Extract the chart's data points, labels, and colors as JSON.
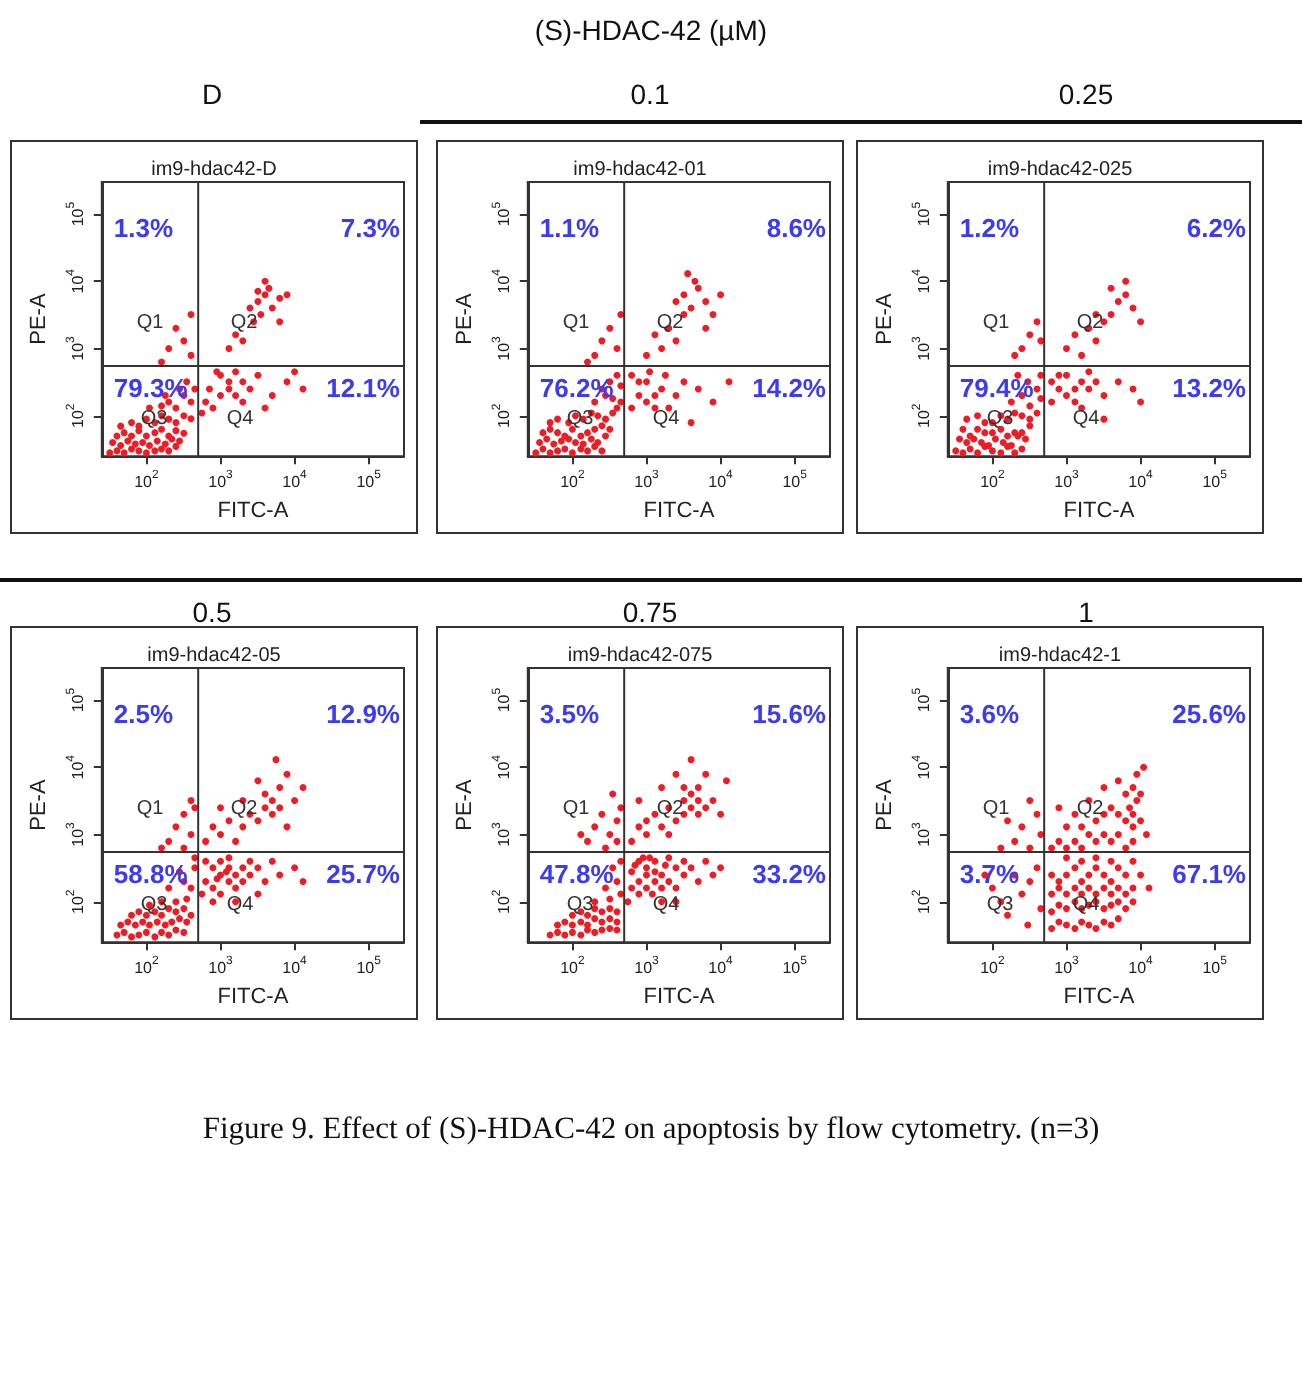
{
  "chart_data": [
    {
      "type": "scatter",
      "title": "D",
      "subtitle": "im9-hdac42-D",
      "xlabel": "FITC-A",
      "ylabel": "PE-A",
      "log": "xy",
      "marker": "circle",
      "xlim": [
        25,
        300000
      ],
      "ylim": [
        25,
        300000
      ],
      "xticks": [
        {
          "value": 100,
          "label": "10$^{2}$"
        },
        {
          "value": 1000,
          "label": "10$^{3}$"
        },
        {
          "value": 10000,
          "label": "10$^{4}$"
        },
        {
          "value": 100000,
          "label": "10$^{5}$"
        }
      ],
      "yticks": [
        {
          "value": 100,
          "label": "10$^{2}$"
        },
        {
          "value": 1000,
          "label": "10$^{3}$"
        },
        {
          "value": 10000,
          "label": "10$^{4}$"
        },
        {
          "value": 100000,
          "label": "10$^{5}$"
        }
      ],
      "ref_lines": [
        {
          "axis": "x",
          "value": 500,
          "color": "#333333"
        },
        {
          "axis": "y",
          "value": 550,
          "color": "#333333"
        }
      ],
      "annotations": [
        "1.3%",
        "7.3%",
        "79.3%",
        "12.1%",
        "Q1",
        "Q2",
        "Q3",
        "Q4",
        "(S)-HDAC-42 (µM)"
      ],
      "series": [
        {
          "color": "#ee1c24",
          "x": [
            32,
            40,
            50,
            63,
            79,
            100,
            130,
            160,
            200,
            250,
            35,
            45,
            56,
            71,
            89,
            110,
            140,
            180,
            220,
            280,
            40,
            50,
            63,
            79,
            100,
            130,
            160,
            200,
            250,
            320,
            45,
            63,
            79,
            100,
            130,
            160,
            200,
            250,
            320,
            400,
            110,
            160,
            200,
            250,
            320,
            400,
            450,
            280,
            180,
            350,
            560,
            630,
            790,
            1000,
            1300,
            1600,
            2000,
            2500,
            1000,
            1300,
            710,
            890,
            2000,
            3200,
            1600,
            5000,
            7900,
            13000,
            4000,
            10000,
            3200,
            4000,
            5000,
            4500,
            3500,
            2500,
            6300,
            4000,
            2800,
            1600,
            1300,
            2000,
            6300,
            7900,
            3200,
            200,
            250,
            320,
            400,
            160,
            400
          ],
          "values": [
            28,
            30,
            28,
            32,
            30,
            28,
            30,
            32,
            30,
            35,
            40,
            36,
            42,
            38,
            40,
            36,
            42,
            38,
            45,
            42,
            50,
            56,
            50,
            60,
            50,
            56,
            63,
            50,
            60,
            55,
            70,
            79,
            70,
            89,
            79,
            100,
            89,
            79,
            100,
            90,
            130,
            140,
            160,
            130,
            200,
            160,
            250,
            250,
            200,
            320,
            110,
            160,
            130,
            200,
            250,
            200,
            320,
            250,
            400,
            320,
            250,
            450,
            160,
            400,
            450,
            200,
            320,
            250,
            130,
            450,
            5000,
            6300,
            4000,
            7900,
            3200,
            4000,
            5600,
            10000,
            2500,
            1600,
            1000,
            1300,
            2500,
            6300,
            7100,
            1000,
            2000,
            1300,
            3200,
            630,
            790
          ]
        }
      ]
    },
    {
      "type": "scatter",
      "title": "0.1",
      "subtitle": "im9-hdac42-01",
      "xlabel": "FITC-A",
      "ylabel": "PE-A",
      "log": "xy",
      "marker": "circle",
      "xlim": [
        25,
        300000
      ],
      "ylim": [
        25,
        300000
      ],
      "xticks": [
        {
          "value": 100,
          "label": "10$^{2}$"
        },
        {
          "value": 1000,
          "label": "10$^{3}$"
        },
        {
          "value": 10000,
          "label": "10$^{4}$"
        },
        {
          "value": 100000,
          "label": "10$^{5}$"
        }
      ],
      "yticks": [
        {
          "value": 100,
          "label": "10$^{2}$"
        },
        {
          "value": 1000,
          "label": "10$^{3}$"
        },
        {
          "value": 10000,
          "label": "10$^{4}$"
        },
        {
          "value": 100000,
          "label": "10$^{5}$"
        }
      ],
      "ref_lines": [
        {
          "axis": "x",
          "value": 500,
          "color": "#333333"
        },
        {
          "axis": "y",
          "value": 550,
          "color": "#333333"
        }
      ],
      "annotations": [
        "1.1%",
        "8.6%",
        "76.2%",
        "14.2%",
        "Q1",
        "Q2",
        "Q3",
        "Q4"
      ],
      "series": [
        {
          "color": "#ee1c24",
          "x": [
            32,
            40,
            50,
            63,
            79,
            100,
            130,
            160,
            200,
            250,
            36,
            45,
            56,
            71,
            89,
            110,
            140,
            180,
            220,
            280,
            40,
            50,
            63,
            79,
            100,
            130,
            160,
            200,
            250,
            320,
            50,
            63,
            89,
            110,
            140,
            180,
            220,
            280,
            350,
            400,
            200,
            280,
            350,
            450,
            320,
            400,
            250,
            450,
            630,
            790,
            1000,
            1300,
            1600,
            1000,
            1300,
            790,
            1800,
            2500,
            3200,
            2000,
            630,
            1100,
            5000,
            7900,
            13000,
            4000,
            2500,
            3200,
            4000,
            5000,
            3200,
            2000,
            6300,
            4500,
            2500,
            1300,
            1000,
            1600,
            7900,
            10000,
            3600,
            6300,
            200,
            250,
            320,
            400,
            450,
            160
          ],
          "values": [
            28,
            32,
            28,
            30,
            32,
            28,
            32,
            30,
            35,
            30,
            40,
            45,
            38,
            42,
            45,
            40,
            38,
            45,
            40,
            50,
            56,
            63,
            56,
            50,
            63,
            50,
            56,
            63,
            71,
            63,
            79,
            89,
            79,
            100,
            89,
            110,
            100,
            89,
            110,
            130,
            160,
            200,
            180,
            280,
            320,
            400,
            250,
            160,
            130,
            200,
            160,
            200,
            250,
            320,
            130,
            320,
            400,
            200,
            320,
            130,
            400,
            450,
            250,
            160,
            320,
            79,
            5000,
            6300,
            4000,
            7900,
            3200,
            2000,
            5000,
            10000,
            1300,
            1600,
            790,
            1000,
            3200,
            6300,
            13000,
            2000,
            790,
            1300,
            2000,
            1000,
            3200,
            630
          ]
        }
      ]
    },
    {
      "type": "scatter",
      "title": "0.25",
      "subtitle": "im9-hdac42-025",
      "xlabel": "FITC-A",
      "ylabel": "PE-A",
      "log": "xy",
      "marker": "circle",
      "xlim": [
        25,
        300000
      ],
      "ylim": [
        25,
        300000
      ],
      "xticks": [
        {
          "value": 100,
          "label": "10$^{2}$"
        },
        {
          "value": 1000,
          "label": "10$^{3}$"
        },
        {
          "value": 10000,
          "label": "10$^{4}$"
        },
        {
          "value": 100000,
          "label": "10$^{5}$"
        }
      ],
      "yticks": [
        {
          "value": 100,
          "label": "10$^{2}$"
        },
        {
          "value": 1000,
          "label": "10$^{3}$"
        },
        {
          "value": 10000,
          "label": "10$^{4}$"
        },
        {
          "value": 100000,
          "label": "10$^{5}$"
        }
      ],
      "ref_lines": [
        {
          "axis": "x",
          "value": 500,
          "color": "#333333"
        },
        {
          "axis": "y",
          "value": 550,
          "color": "#333333"
        }
      ],
      "annotations": [
        "1.2%",
        "6.2%",
        "79.4%",
        "13.2%",
        "Q1",
        "Q2",
        "Q3",
        "Q4"
      ],
      "series": [
        {
          "color": "#ee1c24",
          "x": [
            32,
            40,
            50,
            63,
            79,
            100,
            130,
            160,
            200,
            250,
            36,
            45,
            56,
            71,
            89,
            110,
            140,
            180,
            220,
            280,
            40,
            50,
            63,
            79,
            100,
            130,
            160,
            200,
            250,
            320,
            45,
            63,
            79,
            100,
            130,
            160,
            200,
            250,
            320,
            400,
            180,
            250,
            320,
            400,
            450,
            300,
            220,
            450,
            630,
            790,
            1000,
            1300,
            1600,
            1000,
            1300,
            790,
            2000,
            2500,
            1600,
            2000,
            3200,
            630,
            5000,
            7900,
            10000,
            3200,
            1000,
            1300,
            1600,
            2000,
            2500,
            3200,
            4000,
            5000,
            6300,
            7900,
            6300,
            4000,
            10000,
            2500,
            250,
            320,
            400,
            200,
            450
          ],
          "values": [
            30,
            28,
            32,
            28,
            35,
            30,
            28,
            35,
            28,
            32,
            45,
            40,
            45,
            40,
            36,
            45,
            40,
            36,
            50,
            45,
            63,
            50,
            63,
            56,
            56,
            63,
            50,
            56,
            56,
            71,
            89,
            100,
            79,
            79,
            100,
            89,
            110,
            100,
            89,
            110,
            160,
            200,
            140,
            250,
            180,
            320,
            400,
            400,
            160,
            250,
            200,
            250,
            320,
            400,
            160,
            400,
            250,
            320,
            130,
            450,
            200,
            320,
            320,
            250,
            160,
            89,
            1000,
            1600,
            790,
            2000,
            1300,
            2500,
            3200,
            5000,
            6300,
            4000,
            10000,
            7900,
            2500,
            3200,
            1000,
            1600,
            2500,
            790,
            1300
          ]
        }
      ]
    },
    {
      "type": "scatter",
      "title": "0.5",
      "subtitle": "im9-hdac42-05",
      "xlabel": "FITC-A",
      "ylabel": "PE-A",
      "log": "xy",
      "marker": "circle",
      "xlim": [
        25,
        300000
      ],
      "ylim": [
        25,
        300000
      ],
      "xticks": [
        {
          "value": 100,
          "label": "10$^{2}$"
        },
        {
          "value": 1000,
          "label": "10$^{3}$"
        },
        {
          "value": 10000,
          "label": "10$^{4}$"
        },
        {
          "value": 100000,
          "label": "10$^{5}$"
        }
      ],
      "yticks": [
        {
          "value": 100,
          "label": "10$^{2}$"
        },
        {
          "value": 1000,
          "label": "10$^{3}$"
        },
        {
          "value": 10000,
          "label": "10$^{4}$"
        },
        {
          "value": 100000,
          "label": "10$^{5}$"
        }
      ],
      "ref_lines": [
        {
          "axis": "x",
          "value": 500,
          "color": "#333333"
        },
        {
          "axis": "y",
          "value": 550,
          "color": "#333333"
        }
      ],
      "annotations": [
        "2.5%",
        "12.9%",
        "58.8%",
        "25.7%",
        "Q1",
        "Q2",
        "Q3",
        "Q4"
      ],
      "series": [
        {
          "color": "#ee1c24",
          "x": [
            40,
            50,
            63,
            79,
            100,
            130,
            160,
            200,
            250,
            320,
            45,
            56,
            71,
            89,
            110,
            140,
            180,
            220,
            280,
            350,
            63,
            79,
            100,
            130,
            160,
            200,
            250,
            320,
            400,
            110,
            160,
            250,
            350,
            200,
            320,
            400,
            450,
            280,
            450,
            560,
            630,
            790,
            1000,
            1000,
            1300,
            1300,
            1600,
            1600,
            2000,
            2000,
            790,
            630,
            1000,
            1300,
            2500,
            2500,
            3200,
            1600,
            790,
            4000,
            5000,
            6300,
            10000,
            13000,
            3200,
            1200,
            900,
            630,
            790,
            1000,
            1300,
            1600,
            2000,
            2500,
            3200,
            4000,
            5000,
            5000,
            6300,
            4000,
            6300,
            7900,
            3200,
            10000,
            13000,
            2000,
            7900,
            1000,
            5600,
            200,
            250,
            320,
            400,
            450,
            160,
            320,
            400
          ],
          "values": [
            32,
            35,
            30,
            32,
            35,
            30,
            35,
            32,
            38,
            35,
            45,
            50,
            45,
            50,
            45,
            50,
            45,
            50,
            56,
            50,
            63,
            71,
            63,
            71,
            63,
            79,
            71,
            79,
            63,
            89,
            100,
            100,
            110,
            160,
            200,
            160,
            320,
            280,
            450,
            130,
            200,
            160,
            250,
            130,
            200,
            320,
            250,
            160,
            320,
            200,
            320,
            400,
            400,
            450,
            250,
            400,
            320,
            100,
            100,
            200,
            400,
            250,
            320,
            200,
            130,
            280,
            220,
            790,
            1300,
            1000,
            1600,
            790,
            1300,
            2000,
            1600,
            2500,
            2000,
            3200,
            2500,
            4000,
            5000,
            7900,
            6300,
            3200,
            5000,
            3200,
            1300,
            2500,
            13000,
            790,
            1300,
            2000,
            1000,
            2500,
            630,
            630,
            3200
          ]
        }
      ]
    },
    {
      "type": "scatter",
      "title": "0.75",
      "subtitle": "im9-hdac42-075",
      "xlabel": "FITC-A",
      "ylabel": "PE-A",
      "log": "xy",
      "marker": "circle",
      "xlim": [
        25,
        300000
      ],
      "ylim": [
        25,
        300000
      ],
      "xticks": [
        {
          "value": 100,
          "label": "10$^{2}$"
        },
        {
          "value": 1000,
          "label": "10$^{3}$"
        },
        {
          "value": 10000,
          "label": "10$^{4}$"
        },
        {
          "value": 100000,
          "label": "10$^{5}$"
        }
      ],
      "yticks": [
        {
          "value": 100,
          "label": "10$^{2}$"
        },
        {
          "value": 1000,
          "label": "10$^{3}$"
        },
        {
          "value": 10000,
          "label": "10$^{4}$"
        },
        {
          "value": 100000,
          "label": "10$^{5}$"
        }
      ],
      "ref_lines": [
        {
          "axis": "x",
          "value": 500,
          "color": "#333333"
        },
        {
          "axis": "y",
          "value": 550,
          "color": "#333333"
        }
      ],
      "annotations": [
        "3.5%",
        "15.6%",
        "47.8%",
        "33.2%",
        "Q1",
        "Q2",
        "Q3",
        "Q4"
      ],
      "series": [
        {
          "color": "#ee1c24",
          "x": [
            50,
            63,
            79,
            100,
            130,
            160,
            200,
            250,
            320,
            400,
            63,
            79,
            100,
            130,
            160,
            200,
            250,
            320,
            400,
            100,
            130,
            160,
            200,
            250,
            320,
            400,
            200,
            320,
            280,
            400,
            450,
            350,
            450,
            560,
            630,
            790,
            790,
            1000,
            1000,
            1000,
            1300,
            1300,
            1300,
            1600,
            1600,
            1800,
            2000,
            2000,
            2500,
            2500,
            630,
            790,
            1100,
            3200,
            3200,
            4000,
            5000,
            6300,
            7900,
            1600,
            2500,
            700,
            900,
            1200,
            10000,
            630,
            790,
            1000,
            1000,
            1300,
            1600,
            2000,
            2000,
            2500,
            3200,
            3200,
            4000,
            4000,
            5000,
            5000,
            6300,
            5000,
            3200,
            7900,
            6300,
            2500,
            1600,
            10000,
            12000,
            4000,
            790,
            160,
            200,
            250,
            320,
            400,
            450,
            280,
            400,
            350,
            130
          ],
          "values": [
            32,
            35,
            32,
            35,
            32,
            38,
            35,
            38,
            40,
            38,
            45,
            50,
            45,
            50,
            45,
            56,
            50,
            56,
            50,
            63,
            71,
            63,
            79,
            71,
            79,
            71,
            100,
            110,
            160,
            200,
            130,
            320,
            400,
            100,
            160,
            200,
            130,
            160,
            250,
            320,
            200,
            280,
            400,
            250,
            160,
            350,
            200,
            450,
            320,
            160,
            280,
            400,
            450,
            250,
            400,
            320,
            200,
            400,
            250,
            100,
            100,
            350,
            450,
            130,
            320,
            790,
            1300,
            1000,
            1600,
            2000,
            1300,
            2500,
            1000,
            1600,
            2000,
            3200,
            2500,
            4000,
            2000,
            3200,
            2500,
            5000,
            5000,
            3200,
            7900,
            7900,
            5000,
            2000,
            6300,
            13000,
            3200,
            790,
            1300,
            2000,
            1000,
            1600,
            2500,
            630,
            790,
            4000,
            1000
          ]
        }
      ]
    },
    {
      "type": "scatter",
      "title": "1",
      "subtitle": "im9-hdac42-1",
      "xlabel": "FITC-A",
      "ylabel": "PE-A",
      "log": "xy",
      "marker": "circle",
      "xlim": [
        25,
        300000
      ],
      "ylim": [
        25,
        300000
      ],
      "xticks": [
        {
          "value": 100,
          "label": "10$^{2}$"
        },
        {
          "value": 1000,
          "label": "10$^{3}$"
        },
        {
          "value": 10000,
          "label": "10$^{4}$"
        },
        {
          "value": 100000,
          "label": "10$^{5}$"
        }
      ],
      "yticks": [
        {
          "value": 100,
          "label": "10$^{2}$"
        },
        {
          "value": 1000,
          "label": "10$^{3}$"
        },
        {
          "value": 10000,
          "label": "10$^{4}$"
        },
        {
          "value": 100000,
          "label": "10$^{5}$"
        }
      ],
      "ref_lines": [
        {
          "axis": "x",
          "value": 500,
          "color": "#333333"
        },
        {
          "axis": "y",
          "value": 550,
          "color": "#333333"
        }
      ],
      "annotations": [
        "3.6%",
        "25.6%",
        "3.7%",
        "67.1%",
        "Q1",
        "Q2",
        "Q3",
        "Q4",
        "Figure 9. Effect of (S)-HDAC-42 on apoptosis by flow cytometry. (n=3)"
      ],
      "series": [
        {
          "color": "#ee1c24",
          "x": [
            100,
            130,
            200,
            250,
            320,
            400,
            160,
            450,
            79,
            300,
            630,
            790,
            1000,
            1300,
            1600,
            2000,
            2500,
            3200,
            4000,
            5000,
            630,
            790,
            1000,
            1300,
            1600,
            2000,
            2500,
            3200,
            4000,
            5000,
            6300,
            7900,
            630,
            790,
            1000,
            1300,
            1600,
            2000,
            2500,
            3200,
            4000,
            5000,
            6300,
            7900,
            630,
            790,
            1000,
            1300,
            1600,
            2000,
            2500,
            3200,
            4000,
            5000,
            6300,
            7900,
            1000,
            1600,
            2500,
            10000,
            13000,
            4000,
            630,
            790,
            1000,
            1300,
            1600,
            2000,
            2500,
            3200,
            4000,
            5000,
            6300,
            7900,
            7900,
            6300,
            7900,
            10000,
            7100,
            8900,
            7900,
            6300,
            10000,
            8900,
            5000,
            4000,
            3200,
            2500,
            1600,
            1300,
            1000,
            2000,
            3200,
            5000,
            11000,
            12000,
            790,
            200,
            250,
            320,
            400,
            450,
            160,
            320,
            130
          ],
          "values": [
            160,
            100,
            250,
            130,
            200,
            320,
            63,
            79,
            250,
            45,
            40,
            50,
            45,
            40,
            50,
            45,
            40,
            50,
            45,
            56,
            71,
            89,
            79,
            100,
            79,
            89,
            100,
            79,
            89,
            100,
            79,
            100,
            130,
            160,
            130,
            160,
            130,
            160,
            130,
            160,
            130,
            160,
            130,
            160,
            250,
            200,
            250,
            320,
            200,
            250,
            320,
            250,
            200,
            320,
            250,
            400,
            450,
            400,
            450,
            250,
            160,
            400,
            630,
            790,
            630,
            790,
            630,
            1000,
            790,
            1000,
            790,
            1000,
            630,
            790,
            1300,
            1600,
            2000,
            1600,
            2500,
            3200,
            5000,
            4000,
            4000,
            7900,
            6300,
            2500,
            2000,
            1600,
            1300,
            2000,
            1300,
            3200,
            5000,
            2000,
            10000,
            1000,
            2500,
            790,
            1300,
            630,
            2000,
            1000,
            1600,
            3200,
            630
          ]
        }
      ]
    }
  ]
}
